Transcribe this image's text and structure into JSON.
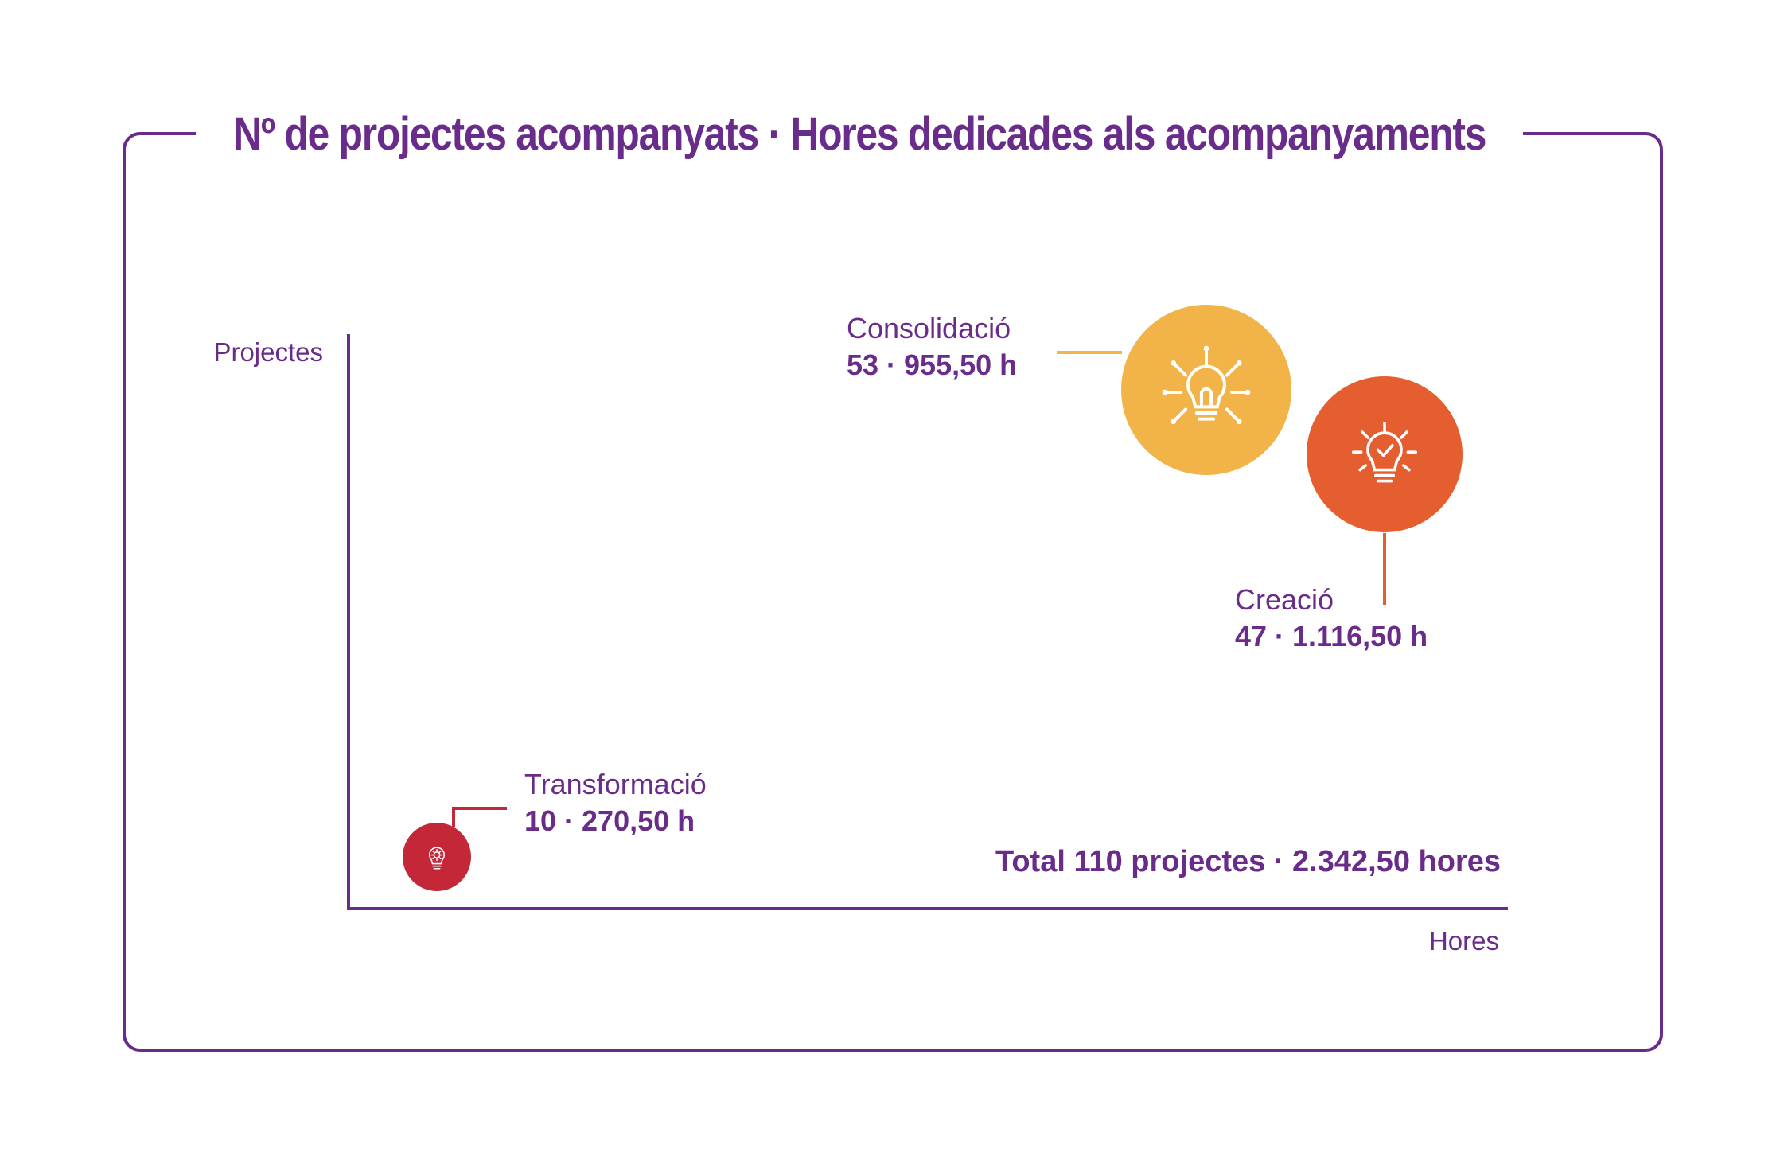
{
  "title": "Nº de projectes acompanyats · Hores dedicades als acompanyaments",
  "colors": {
    "brand": "#6a2c8a",
    "consolidacio": "#f2b349",
    "creacio": "#e45e30",
    "transformacio": "#c42737"
  },
  "chart_data": {
    "type": "scatter",
    "xlabel": "Hores",
    "ylabel": "Projectes",
    "points": [
      {
        "name": "Consolidació",
        "projects": 53,
        "hours": 955.5,
        "label": "53 · 955,50 h",
        "color": "#f2b349",
        "icon": "lightbulb-ideas-icon"
      },
      {
        "name": "Creació",
        "projects": 47,
        "hours": 1116.5,
        "label": "47 · 1.116,50 h",
        "color": "#e45e30",
        "icon": "lightbulb-check-icon"
      },
      {
        "name": "Transformació",
        "projects": 10,
        "hours": 270.5,
        "label": "10 · 270,50 h",
        "color": "#c42737",
        "icon": "lightbulb-gear-icon"
      }
    ],
    "total": "Total 110 projectes · 2.342,50 hores"
  }
}
